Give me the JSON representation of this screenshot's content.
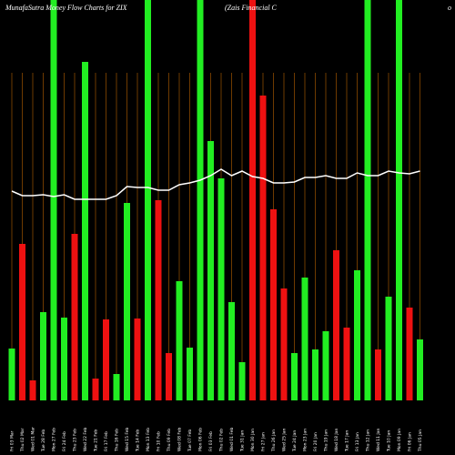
{
  "chart_data": {
    "type": "bar",
    "title": "MunafaSutra  Money Flow  Charts for ZIX",
    "subtitle": "(Zais Financial C",
    "title_right": "o",
    "categories": [
      "Fri 03 Mar",
      "Thu 02 Mar",
      "Wed 01 Mar",
      "Tue 28 Feb",
      "Mon 27 Feb",
      "Fri 24 Feb",
      "Thu 23 Feb",
      "Wed 22 Feb",
      "Tue 21 Feb",
      "Fri 17 Feb",
      "Thu 16 Feb",
      "Wed 15 Feb",
      "Tue 14 Feb",
      "Mon 13 Feb",
      "Fri 10 Feb",
      "Thu 09 Feb",
      "Wed 08 Feb",
      "Tue 07 Feb",
      "Mon 06 Feb",
      "Fri 03 Feb",
      "Thu 02 Feb",
      "Wed 01 Feb",
      "Tue 31 Jan",
      "Mon 30 Jan",
      "Fri 27 Jan",
      "Thu 26 Jan",
      "Wed 25 Jan",
      "Tue 24 Jan",
      "Mon 23 Jan",
      "Fri 20 Jan",
      "Thu 19 Jan",
      "Wed 18 Jan",
      "Tue 17 Jan",
      "Fri 13 Jan",
      "Thu 12 Jan",
      "Wed 11 Jan",
      "Tue 10 Jan",
      "Mon 09 Jan",
      "Fri 06 Jan",
      "Thu 05 Jan"
    ],
    "values": [
      57,
      172,
      22,
      97,
      440,
      91,
      183,
      372,
      24,
      89,
      29,
      217,
      90,
      440,
      220,
      52,
      131,
      58,
      440,
      285,
      244,
      108,
      42,
      440,
      335,
      210,
      123,
      52,
      135,
      56,
      76,
      165,
      80,
      143,
      440,
      56,
      114,
      440,
      102,
      67
    ],
    "bar_colors": [
      "#22ee22",
      "#ee1111",
      "#ee1111",
      "#22ee22",
      "#22ee22",
      "#22ee22",
      "#ee1111",
      "#22ee22",
      "#ee1111",
      "#ee1111",
      "#22ee22",
      "#22ee22",
      "#ee1111",
      "#22ee22",
      "#ee1111",
      "#ee1111",
      "#22ee22",
      "#22ee22",
      "#22ee22",
      "#22ee22",
      "#22ee22",
      "#22ee22",
      "#22ee22",
      "#ee1111",
      "#ee1111",
      "#ee1111",
      "#ee1111",
      "#22ee22",
      "#22ee22",
      "#22ee22",
      "#22ee22",
      "#ee1111",
      "#ee1111",
      "#22ee22",
      "#22ee22",
      "#ee1111",
      "#22ee22",
      "#22ee22",
      "#ee1111",
      "#22ee22"
    ],
    "line_values": [
      230,
      225,
      225,
      226,
      224,
      226,
      221,
      221,
      221,
      221,
      225,
      235,
      234,
      234,
      231,
      231,
      237,
      239,
      242,
      247,
      254,
      247,
      252,
      246,
      244,
      239,
      239,
      240,
      245,
      245,
      247,
      244,
      244,
      250,
      247,
      247,
      252,
      250,
      249,
      252
    ],
    "line_color": "#ffffff",
    "grid_color": "#8a4a00",
    "ylim": [
      0,
      440
    ]
  }
}
